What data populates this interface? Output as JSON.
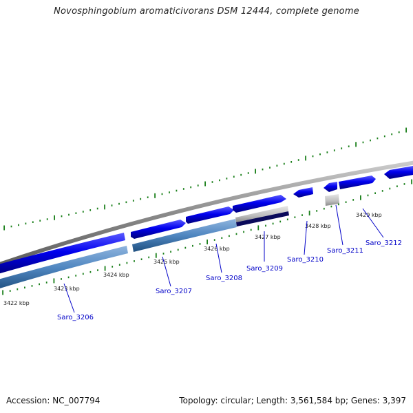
{
  "title": "Novosphingobium aromaticivorans DSM 12444, complete genome",
  "footer": {
    "accession": "Accession: NC_007794",
    "summary": "Topology: circular; Length: 3,561,584 bp; Genes: 3,397"
  },
  "scale_labels": [
    "3422 kbp",
    "3423 kbp",
    "3424 kbp",
    "3425 kbp",
    "3426 kbp",
    "3427 kbp",
    "3428 kbp",
    "3429 kbp"
  ],
  "genes": [
    {
      "name": "Saro_3206",
      "type": "protein",
      "strand": "forward"
    },
    {
      "name": "Saro_3207",
      "type": "protein",
      "strand": "forward"
    },
    {
      "name": "Saro_3208",
      "type": "protein",
      "strand": "forward"
    },
    {
      "name": "Saro_3209",
      "type": "protein",
      "strand": "forward"
    },
    {
      "name": "Saro_3210",
      "type": "protein",
      "strand": "reverse"
    },
    {
      "name": "Saro_3211",
      "type": "protein",
      "strand": "reverse"
    },
    {
      "name": "Saro_3212",
      "type": "protein",
      "strand": "forward"
    }
  ],
  "colors": {
    "backbone": "#8a8a8a",
    "cds": "#0000ee",
    "cds_highlight": "#4a4aff",
    "cds_shadow": "#00006a",
    "rna": "#4f86c0",
    "grey_feature": "#bdbdbd",
    "dark_feature": "#0a0a5a",
    "tick": "#1a7f1a",
    "gene_label": "#0000c8"
  }
}
